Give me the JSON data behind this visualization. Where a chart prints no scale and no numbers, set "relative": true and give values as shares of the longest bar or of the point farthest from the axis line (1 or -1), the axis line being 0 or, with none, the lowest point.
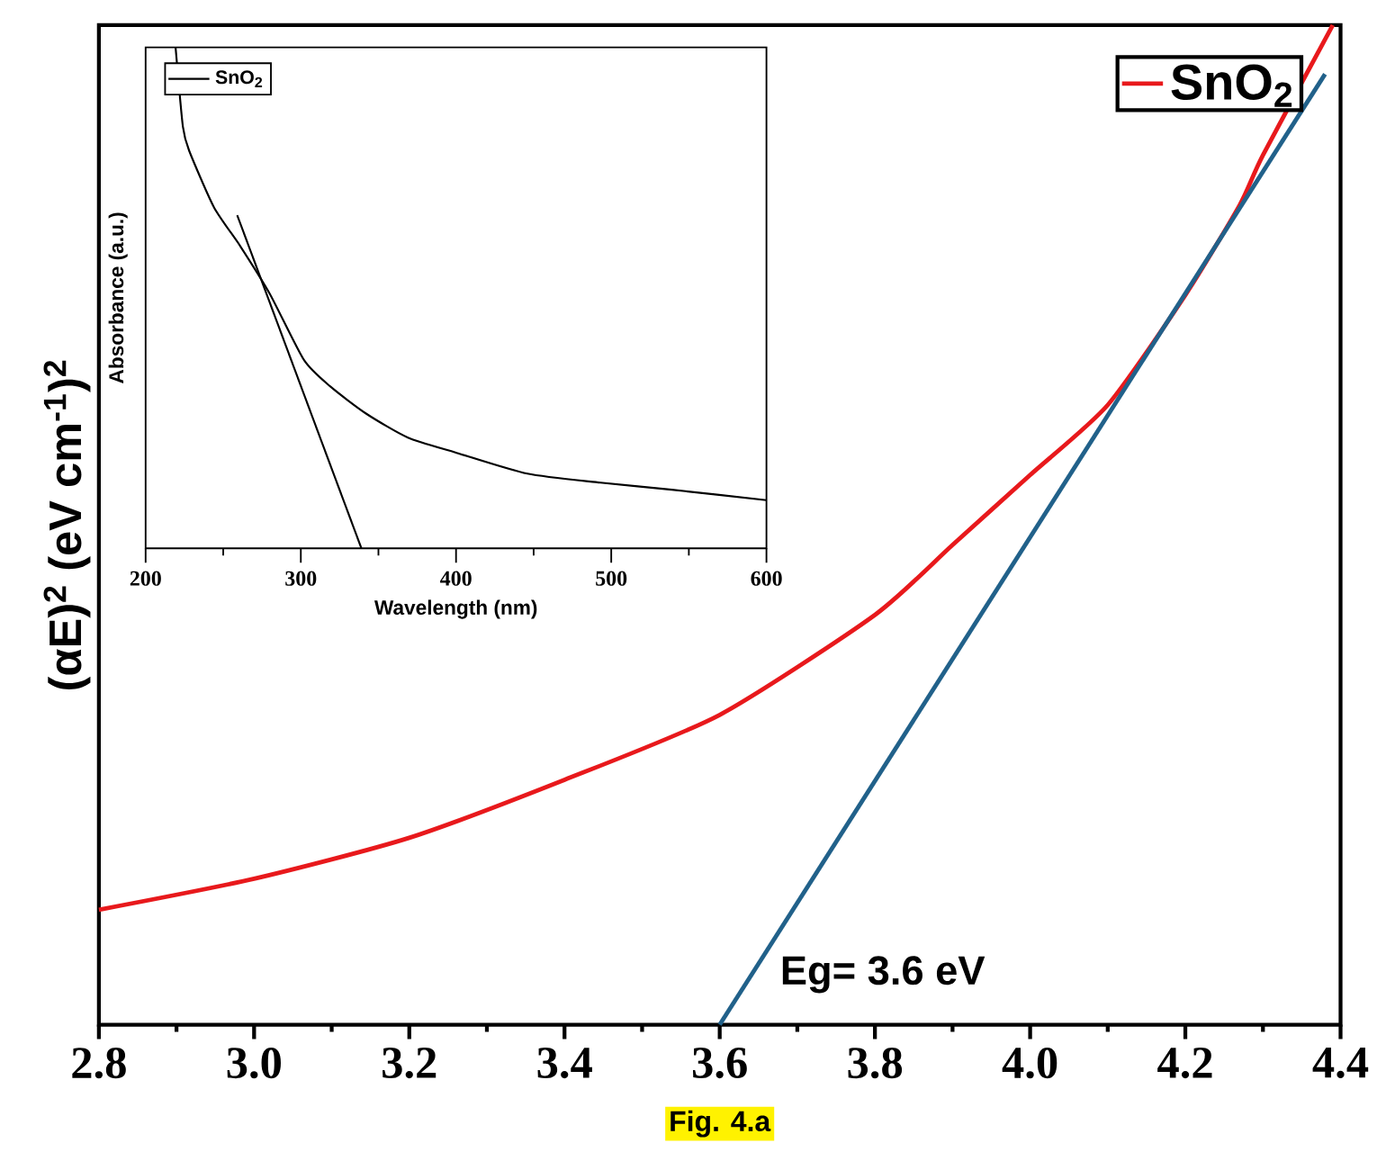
{
  "chart_data": [
    {
      "type": "line",
      "ylabel": "(αE)$^{2}$ (eV cm$^{-1}$)$^{2}$",
      "relative": true,
      "legend": "top right",
      "xlim": [
        2.8,
        4.4
      ],
      "xticks": [
        2.8,
        {
          "value": 3.0,
          "label": "3.0"
        },
        3.2,
        3.4,
        3.6,
        3.8,
        {
          "value": 4.0,
          "label": "4.0"
        },
        4.2,
        4.4
      ],
      "series": [
        {
          "name": "SnO$_{2}$",
          "color": "#e8191c",
          "x": [
            2.8,
            3.0,
            3.2,
            3.4,
            3.6,
            3.8,
            3.9,
            4.0,
            4.1,
            4.2,
            4.27,
            4.3,
            4.39
          ],
          "values": [
            0.115,
            0.146,
            0.187,
            0.245,
            0.31,
            0.41,
            0.48,
            0.55,
            0.62,
            0.73,
            0.82,
            0.87,
            1.0
          ]
        },
        {
          "color": "#21618a",
          "x": [
            3.6,
            4.38
          ],
          "values": [
            0,
            0.951
          ]
        }
      ],
      "annotations": [
        {
          "text": "Eg= 3.6 eV",
          "x": 3.6,
          "y": 0
        },
        "Fig. 4.a"
      ]
    },
    {
      "type": "line",
      "xlabel": "Wavelength (nm)",
      "ylabel": "Absorbance (a.u.)",
      "relative": true,
      "legend": "top left",
      "xlim": [
        200,
        600
      ],
      "xticks": [
        200,
        300,
        400,
        500,
        600
      ],
      "series": [
        {
          "name": "SnO$_{2}$",
          "color": "#000000",
          "x": [
            219.3,
            224,
            228,
            244,
            261,
            280,
            302,
            319,
            342,
            369,
            400,
            446,
            493,
            539,
            600
          ],
          "values": [
            1.0,
            0.842,
            0.794,
            0.681,
            0.603,
            0.508,
            0.376,
            0.323,
            0.269,
            0.221,
            0.191,
            0.149,
            0.131,
            0.117,
            0.096
          ]
        },
        {
          "color": "#000000",
          "x": [
            259,
            339
          ],
          "values": [
            0.665,
            0
          ]
        }
      ]
    }
  ]
}
